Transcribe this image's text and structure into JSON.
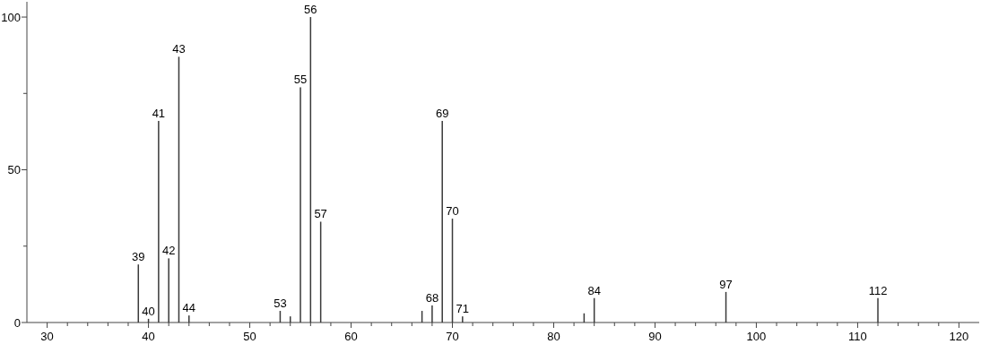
{
  "chart_data": {
    "type": "bar",
    "x": [
      39,
      40,
      41,
      42,
      43,
      44,
      53,
      54,
      55,
      56,
      57,
      67,
      68,
      69,
      70,
      71,
      83,
      84,
      97,
      112
    ],
    "values": [
      19,
      1.2,
      66,
      21,
      87,
      2.3,
      3.8,
      2,
      77,
      100,
      33,
      3.8,
      5.6,
      66,
      34,
      2,
      3,
      8,
      10,
      8
    ],
    "color": "#3a3a3a",
    "xlim": [
      28,
      122
    ],
    "ylim": [
      0,
      105
    ],
    "xticks": [
      30,
      {
        "value": 32,
        "label": null
      },
      {
        "value": 34,
        "label": null
      },
      {
        "value": 36,
        "label": null
      },
      {
        "value": 38,
        "label": null
      },
      40,
      {
        "value": 42,
        "label": null
      },
      {
        "value": 44,
        "label": null
      },
      {
        "value": 46,
        "label": null
      },
      {
        "value": 48,
        "label": null
      },
      50,
      {
        "value": 52,
        "label": null
      },
      {
        "value": 54,
        "label": null
      },
      {
        "value": 56,
        "label": null
      },
      {
        "value": 58,
        "label": null
      },
      60,
      {
        "value": 62,
        "label": null
      },
      {
        "value": 64,
        "label": null
      },
      {
        "value": 66,
        "label": null
      },
      {
        "value": 68,
        "label": null
      },
      70,
      {
        "value": 72,
        "label": null
      },
      {
        "value": 74,
        "label": null
      },
      {
        "value": 76,
        "label": null
      },
      {
        "value": 78,
        "label": null
      },
      80,
      {
        "value": 82,
        "label": null
      },
      {
        "value": 84,
        "label": null
      },
      {
        "value": 86,
        "label": null
      },
      {
        "value": 88,
        "label": null
      },
      90,
      {
        "value": 92,
        "label": null
      },
      {
        "value": 94,
        "label": null
      },
      {
        "value": 96,
        "label": null
      },
      {
        "value": 98,
        "label": null
      },
      100,
      {
        "value": 102,
        "label": null
      },
      {
        "value": 104,
        "label": null
      },
      {
        "value": 106,
        "label": null
      },
      {
        "value": 108,
        "label": null
      },
      110,
      {
        "value": 112,
        "label": null
      },
      {
        "value": 114,
        "label": null
      },
      {
        "value": 116,
        "label": null
      },
      {
        "value": 118,
        "label": null
      },
      120
    ],
    "yticks": [
      0,
      {
        "value": 25,
        "label": null
      },
      50,
      {
        "value": 75,
        "label": null
      },
      100
    ],
    "annotations": [
      {
        "text": "39",
        "x": 39,
        "y": 19
      },
      {
        "text": "40",
        "x": 40,
        "y": 1.2
      },
      {
        "text": "41",
        "x": 41,
        "y": 66
      },
      {
        "text": "42",
        "x": 42,
        "y": 21
      },
      {
        "text": "43",
        "x": 43,
        "y": 87
      },
      {
        "text": "44",
        "x": 44,
        "y": 2.3
      },
      {
        "text": "53",
        "x": 53,
        "y": 3.8
      },
      {
        "text": "55",
        "x": 55,
        "y": 77
      },
      {
        "text": "56",
        "x": 56,
        "y": 100
      },
      {
        "text": "57",
        "x": 57,
        "y": 33
      },
      {
        "text": "68",
        "x": 68,
        "y": 5.6
      },
      {
        "text": "69",
        "x": 69,
        "y": 66
      },
      {
        "text": "70",
        "x": 70,
        "y": 34
      },
      {
        "text": "71",
        "x": 71,
        "y": 2
      },
      {
        "text": "84",
        "x": 84,
        "y": 8
      },
      {
        "text": "97",
        "x": 97,
        "y": 10
      },
      {
        "text": "112",
        "x": 112,
        "y": 8
      }
    ]
  }
}
